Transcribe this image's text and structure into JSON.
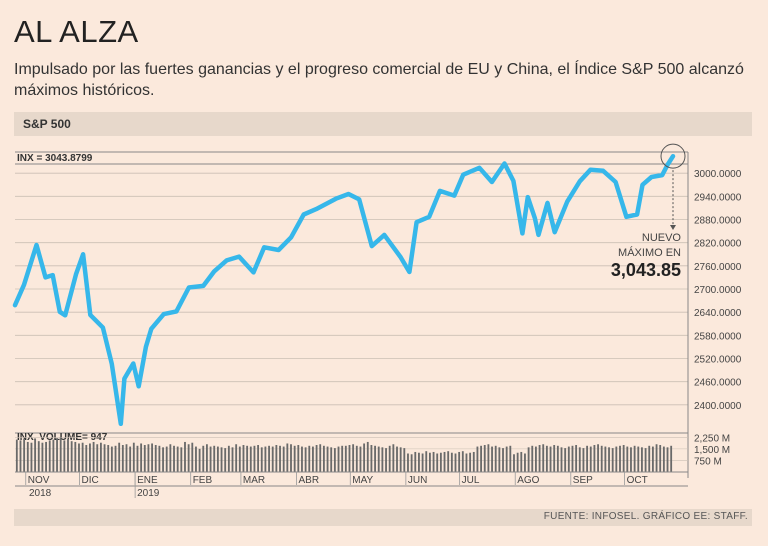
{
  "header": {
    "title": "AL ALZA",
    "subtitle": "Impulsado por las fuertes ganancias y el progreso comercial de EU y China, el Índice S&P 500 alcanzó máximos históricos."
  },
  "section_label": "S&P 500",
  "source": "FUENTE: INFOSEL. GRÁFICO EE: STAFF.",
  "annotation": {
    "line1": "NUEVO",
    "line2": "MÁXIMO EN",
    "value": "3,043.85"
  },
  "colors": {
    "line": "#36b7ea",
    "background": "#fbe9dc",
    "band": "#e7d8cb",
    "grid": "#cbbfb4",
    "volume": "#6a6a6a"
  },
  "chart_data": [
    {
      "type": "line",
      "title": "S&P 500",
      "series_label": "INX = 3043.8799",
      "ylim": [
        2340,
        3060
      ],
      "y_ticks": [
        3000,
        2940,
        2880,
        2820,
        2760,
        2700,
        2640,
        2580,
        2520,
        2460,
        2400
      ],
      "y_tick_labels": [
        "3000.0000",
        "2940.0000",
        "2880.0000",
        "2820.0000",
        "2760.0000",
        "2700.0000",
        "2640.0000",
        "2580.0000",
        "2520.0000",
        "2460.0000",
        "2400.0000"
      ],
      "x_months": [
        "NOV",
        "DIC",
        "ENE",
        "FEB",
        "MAR",
        "ABR",
        "MAY",
        "JUN",
        "JUL",
        "AGO",
        "SEP",
        "OCT"
      ],
      "x_years": [
        "2018",
        "2019"
      ],
      "x": [
        "2018-10-26",
        "2018-10-31",
        "2018-11-07",
        "2018-11-12",
        "2018-11-16",
        "2018-11-20",
        "2018-11-23",
        "2018-11-29",
        "2018-12-03",
        "2018-12-07",
        "2018-12-14",
        "2018-12-19",
        "2018-12-24",
        "2018-12-26",
        "2018-12-31",
        "2019-01-03",
        "2019-01-07",
        "2019-01-10",
        "2019-01-17",
        "2019-01-24",
        "2019-01-31",
        "2019-02-08",
        "2019-02-14",
        "2019-02-21",
        "2019-02-28",
        "2019-03-08",
        "2019-03-14",
        "2019-03-22",
        "2019-03-29",
        "2019-04-05",
        "2019-04-12",
        "2019-04-23",
        "2019-04-30",
        "2019-05-06",
        "2019-05-13",
        "2019-05-20",
        "2019-05-29",
        "2019-06-03",
        "2019-06-07",
        "2019-06-14",
        "2019-06-20",
        "2019-06-28",
        "2019-07-03",
        "2019-07-12",
        "2019-07-19",
        "2019-07-26",
        "2019-07-31",
        "2019-08-05",
        "2019-08-08",
        "2019-08-12",
        "2019-08-14",
        "2019-08-19",
        "2019-08-23",
        "2019-08-30",
        "2019-09-06",
        "2019-09-12",
        "2019-09-19",
        "2019-09-26",
        "2019-10-02",
        "2019-10-08",
        "2019-10-11",
        "2019-10-16",
        "2019-10-22",
        "2019-10-25",
        "2019-10-28"
      ],
      "series": [
        {
          "values": [
            2658,
            2711,
            2814,
            2730,
            2736,
            2641,
            2632,
            2738,
            2790,
            2633,
            2600,
            2506,
            2351,
            2468,
            2507,
            2448,
            2550,
            2597,
            2635,
            2642,
            2704,
            2708,
            2745,
            2774,
            2784,
            2743,
            2808,
            2801,
            2834,
            2893,
            2907,
            2934,
            2946,
            2932,
            2811,
            2840,
            2783,
            2744,
            2873,
            2887,
            2954,
            2942,
            2996,
            3014,
            2977,
            3025,
            2980,
            2844,
            2938,
            2883,
            2840,
            2923,
            2847,
            2926,
            2979,
            3009,
            3006,
            2977,
            2887,
            2893,
            2970,
            2990,
            2995,
            3022,
            3044
          ]
        }
      ]
    },
    {
      "type": "bar",
      "title": "INX. VOLUME",
      "series_label": "INX. VOLUME= 947",
      "y_ticks": [
        "2,250 M",
        "1,500 M",
        "750 M"
      ],
      "values_M": [
        2100,
        2050,
        2150,
        1950,
        1900,
        2150,
        2000,
        1900,
        1950,
        2050,
        2100,
        2200,
        2250,
        2050,
        2150,
        2000,
        1950,
        1850,
        1900,
        1750,
        1850,
        1950,
        1800,
        1900,
        1800,
        1750,
        1650,
        1700,
        1900,
        1750,
        1800,
        1650,
        1900,
        1700,
        1850,
        1750,
        1800,
        1850,
        1750,
        1700,
        1600,
        1650,
        1800,
        1700,
        1650,
        1600,
        1950,
        1800,
        1900,
        1650,
        1500,
        1700,
        1800,
        1650,
        1700,
        1650,
        1600,
        1550,
        1700,
        1600,
        1800,
        1650,
        1750,
        1700,
        1650,
        1700,
        1750,
        1600,
        1650,
        1700,
        1650,
        1750,
        1700,
        1650,
        1850,
        1800,
        1700,
        1750,
        1650,
        1600,
        1700,
        1650,
        1750,
        1800,
        1700,
        1650,
        1600,
        1550,
        1650,
        1700,
        1700,
        1750,
        1800,
        1700,
        1650,
        1850,
        1950,
        1750,
        1700,
        1650,
        1600,
        1550,
        1700,
        1800,
        1650,
        1600,
        1550,
        1200,
        1150,
        1300,
        1250,
        1200,
        1350,
        1250,
        1300,
        1200,
        1250,
        1300,
        1350,
        1250,
        1200,
        1300,
        1350,
        1200,
        1250,
        1300,
        1650,
        1700,
        1750,
        1800,
        1650,
        1700,
        1600,
        1550,
        1650,
        1700,
        1150,
        1250,
        1300,
        1200,
        1600,
        1700,
        1650,
        1750,
        1800,
        1700,
        1650,
        1750,
        1700,
        1600,
        1550,
        1650,
        1700,
        1750,
        1600,
        1550,
        1700,
        1650,
        1750,
        1800,
        1700,
        1650,
        1600,
        1550,
        1650,
        1700,
        1750,
        1650,
        1600,
        1700,
        1650,
        1600,
        1550,
        1700,
        1650,
        1800,
        1750,
        1650,
        1600,
        1700
      ]
    }
  ]
}
